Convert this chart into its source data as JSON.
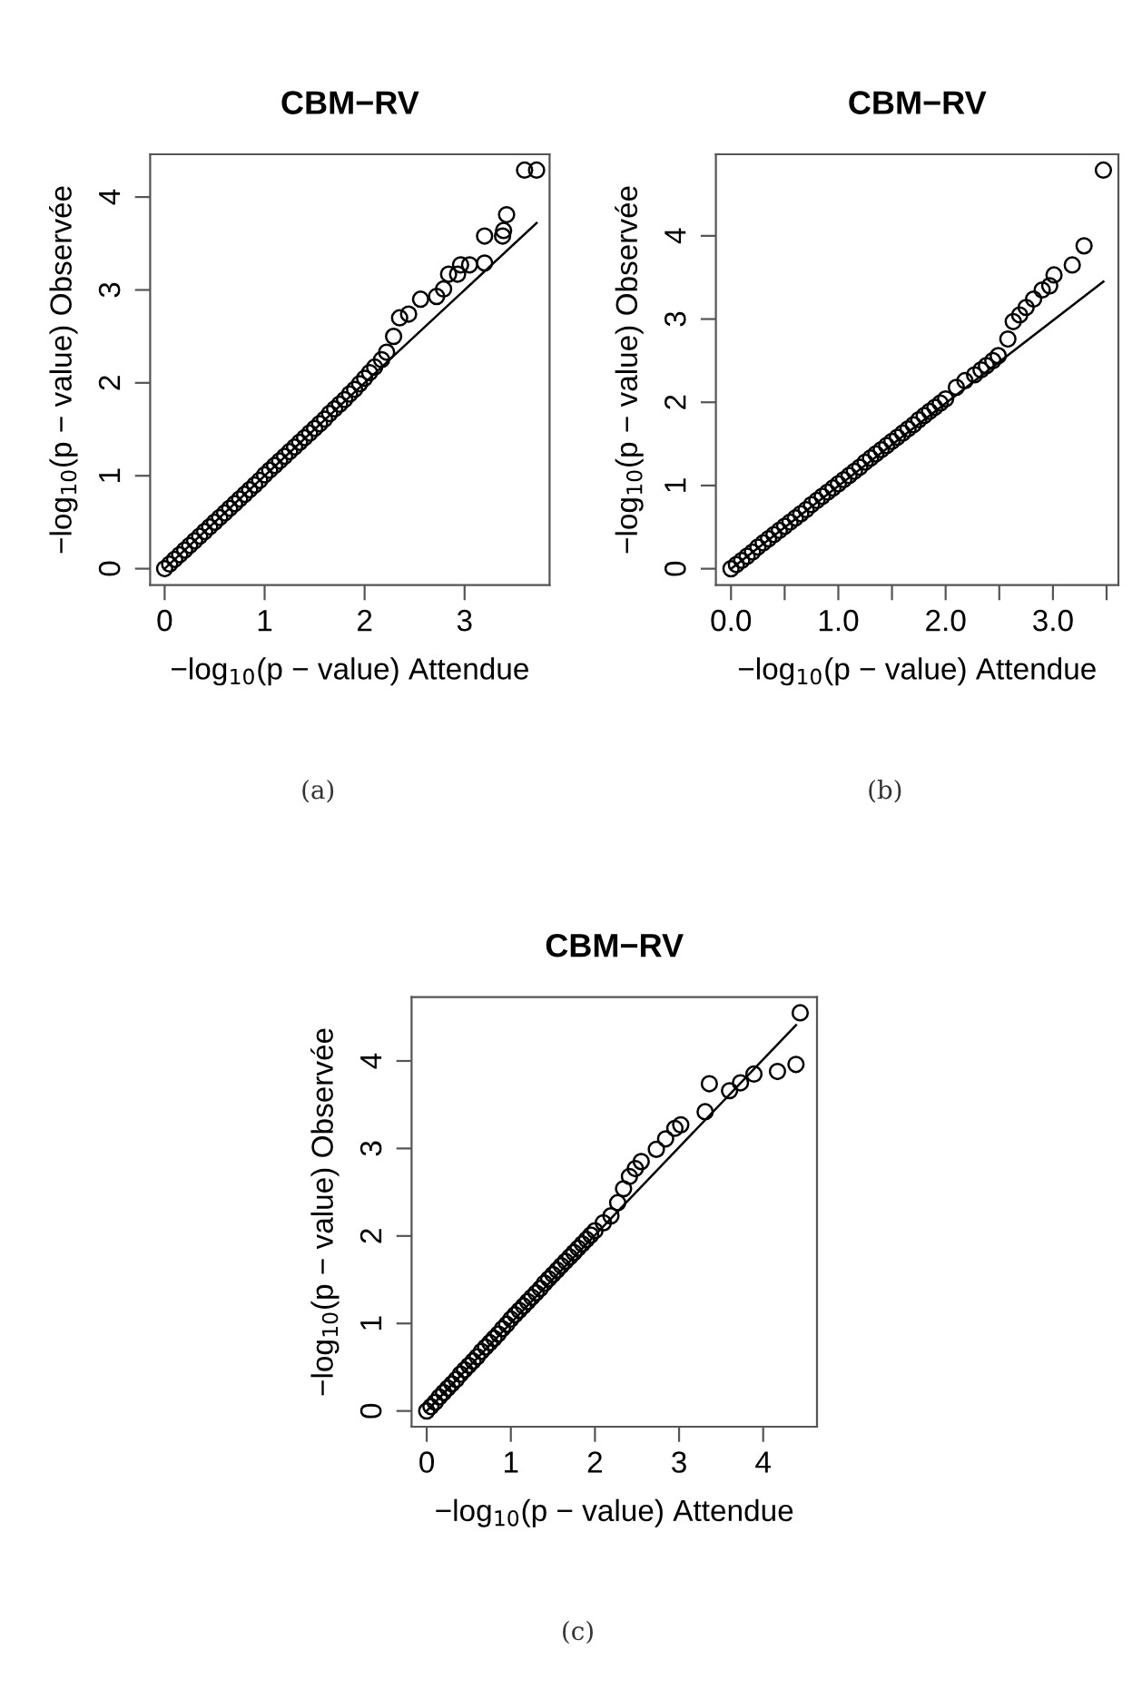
{
  "chart_data": [
    {
      "type": "scatter",
      "title": "CBM−RV",
      "xlabel": "−log$_{10}$(p − value) Attendue",
      "ylabel": "−log$_{10}$(p − value) Observée",
      "annotations": [
        "(a)"
      ],
      "grid": false,
      "xlim": [
        -0.145,
        3.85
      ],
      "ylim": [
        -0.176,
        4.46
      ],
      "xticks": [
        0,
        1,
        2,
        3
      ],
      "yticks": [
        0,
        1,
        2,
        3,
        4
      ],
      "series": [
        {
          "marker": "circle",
          "color": "#000000",
          "x": [
            0,
            0.05,
            0.1,
            0.15,
            0.2,
            0.25,
            0.3,
            0.35,
            0.4,
            0.45,
            0.5,
            0.55,
            0.6,
            0.65,
            0.7,
            0.75,
            0.8,
            0.85,
            0.9,
            0.95,
            1.0,
            1.05,
            1.1,
            1.15,
            1.2,
            1.25,
            1.3,
            1.35,
            1.4,
            1.45,
            1.5,
            1.55,
            1.6,
            1.65,
            1.7,
            1.75,
            1.8,
            1.85,
            1.9,
            1.95,
            2.0,
            2.05,
            2.1,
            2.17,
            2.22,
            2.29,
            2.35,
            2.44,
            2.56,
            2.72,
            2.79,
            2.84,
            2.93,
            2.96,
            3.05,
            3.2,
            3.2,
            3.38,
            3.39,
            3.42,
            3.6,
            3.72
          ],
          "values": [
            0,
            0.05,
            0.1,
            0.15,
            0.2,
            0.25,
            0.3,
            0.35,
            0.4,
            0.45,
            0.5,
            0.55,
            0.6,
            0.65,
            0.7,
            0.75,
            0.8,
            0.85,
            0.9,
            0.95,
            1.01,
            1.06,
            1.11,
            1.16,
            1.21,
            1.26,
            1.31,
            1.36,
            1.41,
            1.46,
            1.51,
            1.56,
            1.61,
            1.67,
            1.72,
            1.77,
            1.82,
            1.88,
            1.93,
            1.99,
            2.05,
            2.11,
            2.17,
            2.25,
            2.33,
            2.5,
            2.7,
            2.74,
            2.9,
            2.93,
            3.01,
            3.17,
            3.17,
            3.27,
            3.27,
            3.29,
            3.58,
            3.58,
            3.64,
            3.81,
            4.29,
            4.29
          ]
        },
        {
          "type": "line",
          "color": "#000000",
          "x": [
            0,
            3.72
          ],
          "values": [
            0,
            3.72
          ]
        }
      ]
    },
    {
      "type": "scatter",
      "title": "CBM−RV",
      "xlabel": "−log$_{10}$(p − value) Attendue",
      "ylabel": "−log$_{10}$(p − value) Observée",
      "annotations": [
        "(b)"
      ],
      "grid": false,
      "xlim": [
        -0.141,
        3.61
      ],
      "ylim": [
        -0.196,
        4.98
      ],
      "xticks": [
        {
          "value": 0,
          "label": "0.0"
        },
        {
          "value": 0.5,
          "label": null
        },
        {
          "value": 1,
          "label": "1.0"
        },
        {
          "value": 1.5,
          "label": null
        },
        {
          "value": 2,
          "label": "2.0"
        },
        {
          "value": 2.5,
          "label": null
        },
        {
          "value": 3,
          "label": "3.0"
        },
        {
          "value": 3.5,
          "label": null
        }
      ],
      "yticks": [
        0,
        1,
        2,
        3,
        4
      ],
      "series": [
        {
          "marker": "circle",
          "color": "#000000",
          "x": [
            0,
            0.05,
            0.1,
            0.15,
            0.2,
            0.25,
            0.3,
            0.35,
            0.4,
            0.45,
            0.5,
            0.55,
            0.6,
            0.65,
            0.7,
            0.75,
            0.8,
            0.85,
            0.9,
            0.95,
            1.0,
            1.05,
            1.1,
            1.15,
            1.2,
            1.25,
            1.3,
            1.35,
            1.4,
            1.45,
            1.5,
            1.55,
            1.6,
            1.65,
            1.7,
            1.75,
            1.8,
            1.85,
            1.9,
            1.95,
            2.0,
            2.1,
            2.18,
            2.27,
            2.33,
            2.38,
            2.44,
            2.49,
            2.58,
            2.63,
            2.69,
            2.75,
            2.82,
            2.9,
            2.97,
            3.01,
            3.18,
            3.29,
            3.47
          ],
          "values": [
            0,
            0.05,
            0.1,
            0.15,
            0.2,
            0.26,
            0.31,
            0.36,
            0.41,
            0.46,
            0.51,
            0.56,
            0.61,
            0.66,
            0.71,
            0.77,
            0.82,
            0.87,
            0.92,
            0.97,
            1.02,
            1.07,
            1.12,
            1.17,
            1.22,
            1.28,
            1.33,
            1.38,
            1.43,
            1.48,
            1.53,
            1.58,
            1.63,
            1.68,
            1.73,
            1.79,
            1.84,
            1.89,
            1.94,
            1.99,
            2.04,
            2.18,
            2.26,
            2.33,
            2.39,
            2.44,
            2.5,
            2.56,
            2.76,
            2.97,
            3.05,
            3.14,
            3.24,
            3.35,
            3.4,
            3.53,
            3.65,
            3.88,
            4.79
          ]
        },
        {
          "type": "line",
          "color": "#000000",
          "x": [
            0,
            3.47
          ],
          "values": [
            0,
            3.45
          ]
        }
      ]
    },
    {
      "type": "scatter",
      "title": "CBM−RV",
      "xlabel": "−log$_{10}$(p − value) Attendue",
      "ylabel": "−log$_{10}$(p − value) Observée",
      "annotations": [
        "(c)"
      ],
      "grid": false,
      "xlim": [
        -0.18,
        4.64
      ],
      "ylim": [
        -0.18,
        4.73
      ],
      "xticks": [
        0,
        1,
        2,
        3,
        4
      ],
      "yticks": [
        0,
        1,
        2,
        3,
        4
      ],
      "series": [
        {
          "marker": "circle",
          "color": "#000000",
          "x": [
            0,
            0.05,
            0.1,
            0.15,
            0.2,
            0.25,
            0.3,
            0.35,
            0.4,
            0.45,
            0.5,
            0.55,
            0.6,
            0.65,
            0.7,
            0.75,
            0.8,
            0.85,
            0.9,
            0.95,
            1.0,
            1.05,
            1.1,
            1.15,
            1.2,
            1.25,
            1.3,
            1.35,
            1.4,
            1.45,
            1.5,
            1.55,
            1.6,
            1.65,
            1.7,
            1.75,
            1.8,
            1.85,
            1.9,
            1.95,
            2.0,
            2.1,
            2.19,
            2.27,
            2.34,
            2.41,
            2.48,
            2.55,
            2.73,
            2.84,
            2.95,
            3.02,
            3.31,
            3.36,
            3.6,
            3.73,
            3.89,
            4.17,
            4.39,
            4.44
          ],
          "values": [
            0,
            0.05,
            0.1,
            0.16,
            0.21,
            0.26,
            0.31,
            0.36,
            0.42,
            0.47,
            0.52,
            0.57,
            0.62,
            0.68,
            0.73,
            0.78,
            0.83,
            0.88,
            0.94,
            0.99,
            1.05,
            1.1,
            1.15,
            1.2,
            1.25,
            1.3,
            1.35,
            1.4,
            1.46,
            1.51,
            1.56,
            1.61,
            1.66,
            1.71,
            1.76,
            1.81,
            1.86,
            1.91,
            1.96,
            2.01,
            2.06,
            2.15,
            2.23,
            2.38,
            2.54,
            2.68,
            2.77,
            2.85,
            2.99,
            3.11,
            3.23,
            3.27,
            3.42,
            3.74,
            3.66,
            3.75,
            3.85,
            3.88,
            3.96,
            4.55
          ]
        },
        {
          "type": "line",
          "color": "#000000",
          "x": [
            0,
            4.39
          ],
          "values": [
            0,
            4.41
          ]
        }
      ]
    }
  ]
}
